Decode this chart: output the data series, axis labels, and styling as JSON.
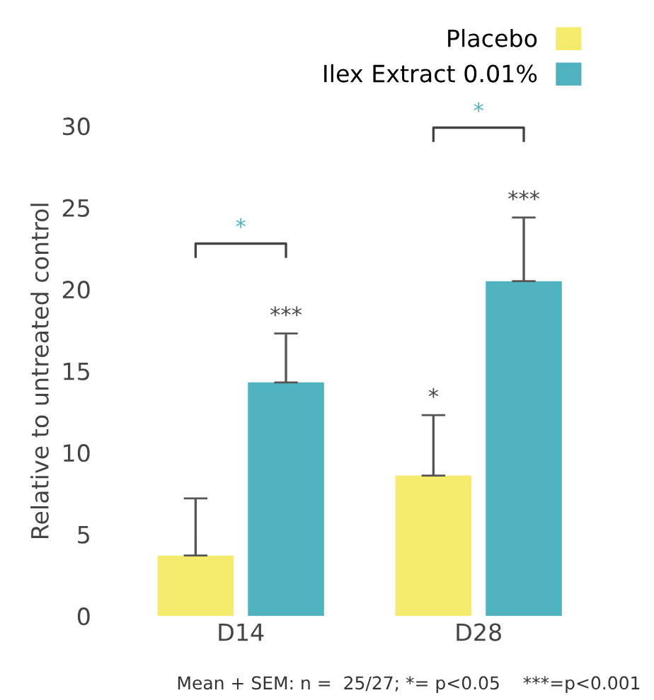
{
  "chart_data": {
    "type": "bar",
    "ylabel": "Relative to untreated control",
    "categories": [
      "D14",
      "D28"
    ],
    "series": [
      {
        "name": "Placebo",
        "color": "#f5ec6e",
        "values": [
          3.7,
          8.6
        ],
        "errors": [
          [
            3.7,
            7.2
          ],
          [
            8.6,
            12.3
          ]
        ]
      },
      {
        "name": "Ilex Extract 0.01%",
        "color": "#4eb2bf",
        "values": [
          14.3,
          20.5
        ],
        "errors": [
          [
            14.3,
            17.3
          ],
          [
            20.5,
            24.4
          ]
        ]
      }
    ],
    "ylim": [
      0,
      30
    ],
    "yticks": [
      0,
      5,
      10,
      15,
      20,
      25,
      30
    ],
    "grid": false,
    "legend": "top right",
    "annotations": [
      "***",
      "*",
      "***",
      "*",
      "*",
      "Mean + SEM: n =  25/27; *= p<0.05    ***=p<0.001"
    ]
  }
}
